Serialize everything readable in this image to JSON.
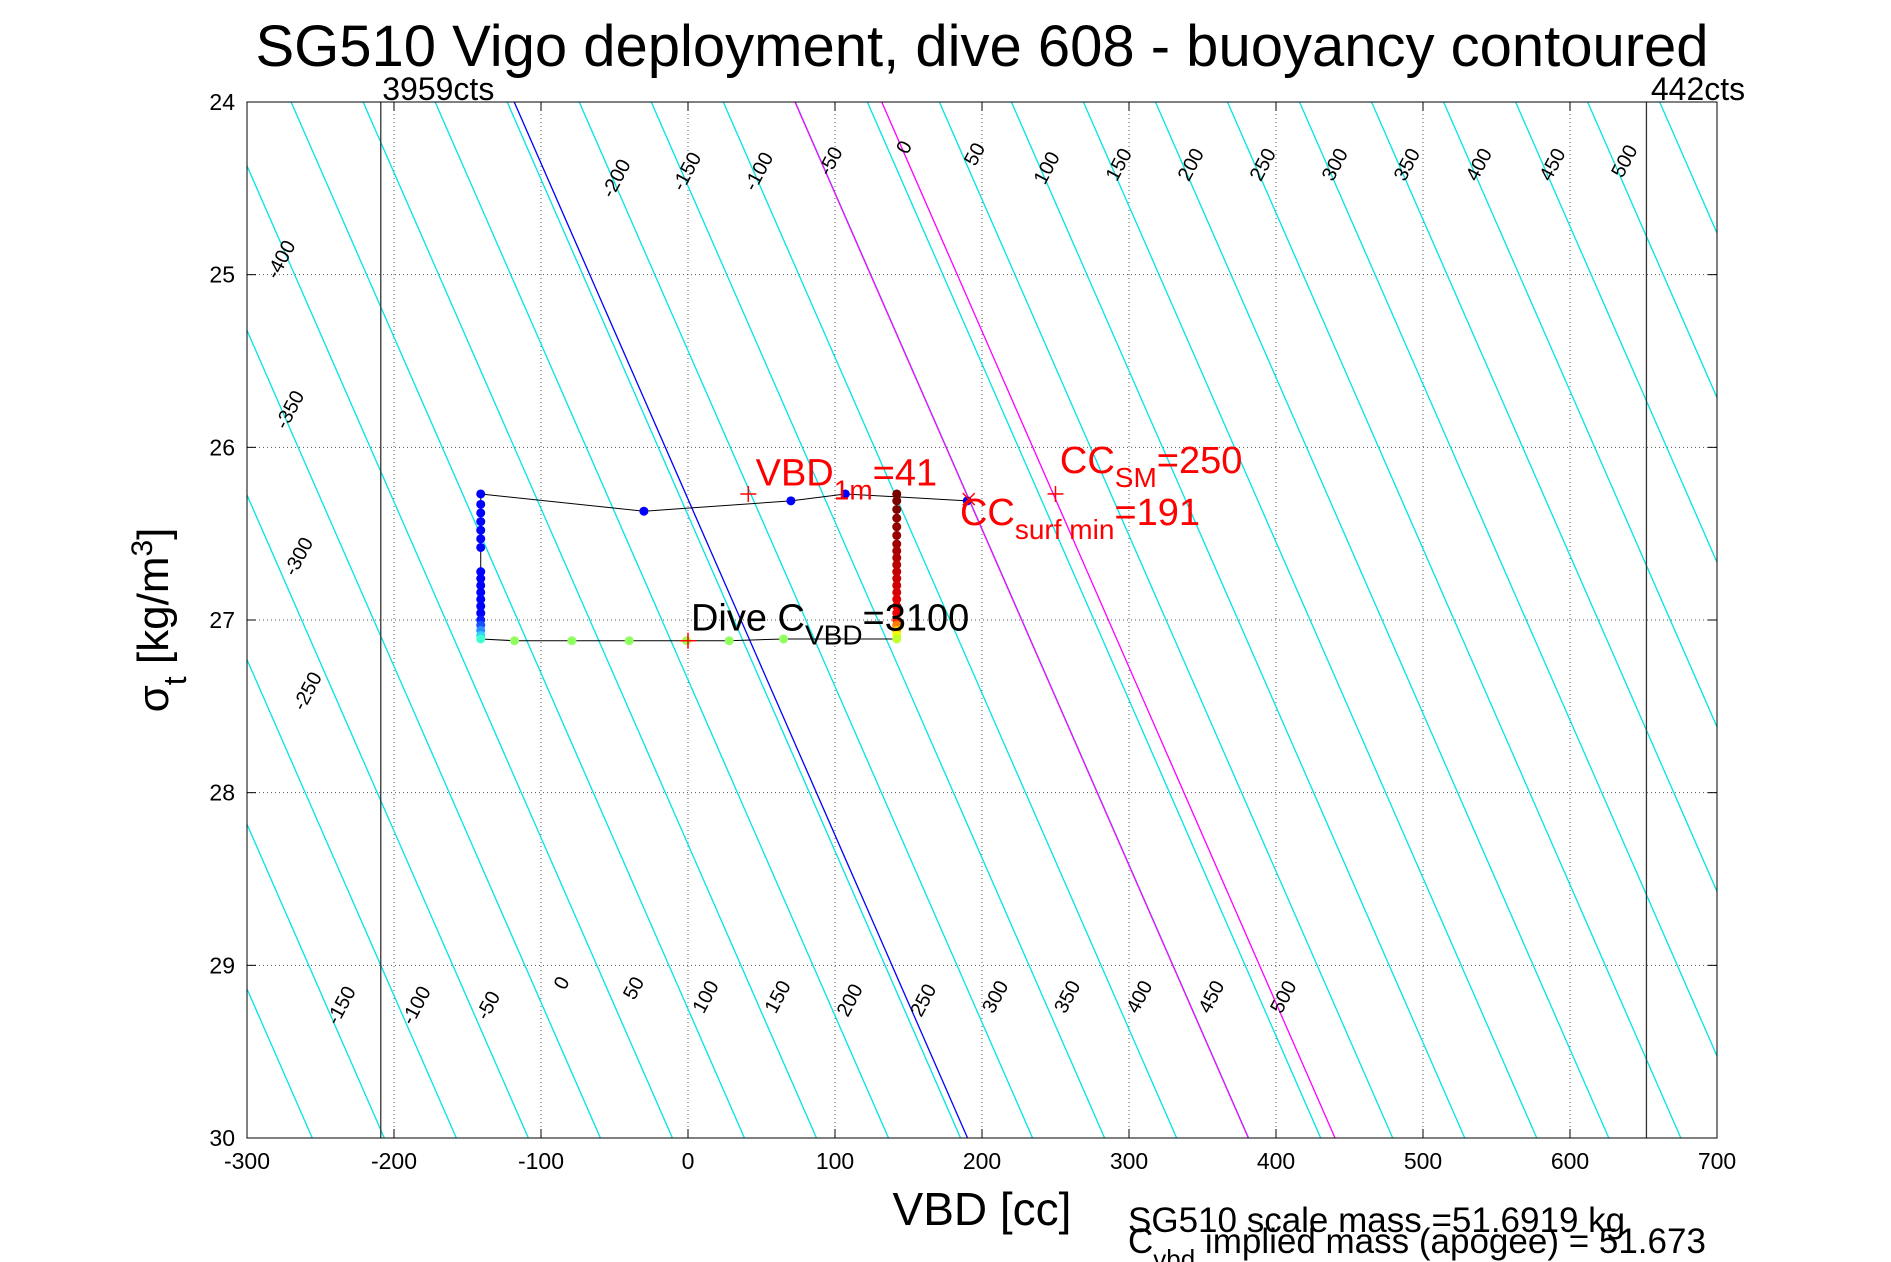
{
  "chart_data": {
    "type": "scatter",
    "title": "SG510 Vigo deployment, dive 608 - buoyancy contoured",
    "xlabel": "VBD [cc]",
    "ylabel": {
      "main": "σ",
      "sub": "t",
      "unit_pre": " [kg/m",
      "unit_sup": "3",
      "unit_post": "]"
    },
    "xlim": [
      -300,
      700
    ],
    "ylim": [
      24,
      30
    ],
    "y_reversed": true,
    "grid": true,
    "x_ticks": [
      -300,
      -200,
      -100,
      0,
      100,
      200,
      300,
      400,
      500,
      600,
      700
    ],
    "y_ticks": [
      24,
      25,
      26,
      27,
      28,
      29,
      30
    ],
    "colors": {
      "contour": "#00e5e5",
      "zero_contour": "#0000ff",
      "magenta_contour": "#ff00ff",
      "track": "#000000",
      "red_marker": "#ff0000"
    },
    "contours": {
      "slope": 51.4,
      "top_levels": [
        -400,
        -350,
        -300,
        -250,
        -200,
        -150,
        -100,
        -50,
        0,
        50,
        100,
        150,
        200,
        250,
        300,
        350,
        400,
        450,
        500
      ],
      "bottom_levels": [
        -150,
        -100,
        -50,
        0,
        50,
        100,
        150,
        200,
        250,
        300,
        350,
        400,
        450,
        500
      ],
      "magenta_levels": [
        191,
        250
      ],
      "labels": [
        {
          "t": "-400",
          "x": -273,
          "y": 24.93
        },
        {
          "t": "-350",
          "x": -267,
          "y": 25.8
        },
        {
          "t": "-300",
          "x": -261,
          "y": 26.65
        },
        {
          "t": "-250",
          "x": -255,
          "y": 27.43
        },
        {
          "t": "-200",
          "x": -45,
          "y": 24.46
        },
        {
          "t": "-150",
          "x": 3,
          "y": 24.42
        },
        {
          "t": "-100",
          "x": 52,
          "y": 24.42
        },
        {
          "t": "-50",
          "x": 101,
          "y": 24.36
        },
        {
          "t": "0",
          "x": 151,
          "y": 24.28
        },
        {
          "t": "50",
          "x": 199,
          "y": 24.32
        },
        {
          "t": "100",
          "x": 248,
          "y": 24.4
        },
        {
          "t": "150",
          "x": 297,
          "y": 24.38
        },
        {
          "t": "200",
          "x": 346,
          "y": 24.38
        },
        {
          "t": "250",
          "x": 395,
          "y": 24.38
        },
        {
          "t": "300",
          "x": 444,
          "y": 24.38
        },
        {
          "t": "350",
          "x": 493,
          "y": 24.38
        },
        {
          "t": "400",
          "x": 542,
          "y": 24.38
        },
        {
          "t": "450",
          "x": 592,
          "y": 24.38
        },
        {
          "t": "500",
          "x": 641,
          "y": 24.36
        },
        {
          "t": "-150",
          "x": -232,
          "y": 29.25
        },
        {
          "t": "-100",
          "x": -181,
          "y": 29.25
        },
        {
          "t": "-50",
          "x": -132,
          "y": 29.25
        },
        {
          "t": "0",
          "x": -82,
          "y": 29.12
        },
        {
          "t": "50",
          "x": -33,
          "y": 29.15
        },
        {
          "t": "100",
          "x": 16,
          "y": 29.2
        },
        {
          "t": "150",
          "x": 65,
          "y": 29.2
        },
        {
          "t": "200",
          "x": 114,
          "y": 29.22
        },
        {
          "t": "250",
          "x": 164,
          "y": 29.22
        },
        {
          "t": "300",
          "x": 213,
          "y": 29.2
        },
        {
          "t": "350",
          "x": 262,
          "y": 29.2
        },
        {
          "t": "400",
          "x": 311,
          "y": 29.2
        },
        {
          "t": "450",
          "x": 360,
          "y": 29.2
        },
        {
          "t": "500",
          "x": 409,
          "y": 29.2
        }
      ]
    },
    "vbd_limits": [
      {
        "x": -209,
        "label": "3959cts",
        "label_x": -208
      },
      {
        "x": 652,
        "label": "442cts",
        "label_x": 655
      }
    ],
    "track": {
      "dive": [
        [
          -141,
          26.27
        ],
        [
          -30,
          26.37
        ],
        [
          70,
          26.31
        ],
        [
          107,
          26.27
        ],
        [
          190,
          26.31
        ]
      ],
      "climb": [
        [
          -141,
          27.11
        ],
        [
          -118,
          27.12
        ],
        [
          -79,
          27.12
        ],
        [
          -40,
          27.12
        ],
        [
          -1,
          27.12
        ],
        [
          28,
          27.12
        ],
        [
          65,
          27.11
        ],
        [
          142,
          27.11
        ]
      ]
    },
    "points": [
      {
        "x": -141,
        "y": 26.27,
        "c": "#0000ff"
      },
      {
        "x": -141,
        "y": 26.33,
        "c": "#0000ff"
      },
      {
        "x": -141,
        "y": 26.38,
        "c": "#0000ff"
      },
      {
        "x": -141,
        "y": 26.43,
        "c": "#0000ff"
      },
      {
        "x": -141,
        "y": 26.48,
        "c": "#0000ff"
      },
      {
        "x": -141,
        "y": 26.53,
        "c": "#0000ff"
      },
      {
        "x": -141,
        "y": 26.58,
        "c": "#0000ff"
      },
      {
        "x": -141,
        "y": 26.72,
        "c": "#0000ff"
      },
      {
        "x": -141,
        "y": 26.76,
        "c": "#0000ff"
      },
      {
        "x": -141,
        "y": 26.8,
        "c": "#0000ff"
      },
      {
        "x": -141,
        "y": 26.84,
        "c": "#0000ff"
      },
      {
        "x": -141,
        "y": 26.88,
        "c": "#0000ff"
      },
      {
        "x": -141,
        "y": 26.92,
        "c": "#0000ff"
      },
      {
        "x": -141,
        "y": 26.96,
        "c": "#0000ff"
      },
      {
        "x": -141,
        "y": 27.0,
        "c": "#0a1aff"
      },
      {
        "x": -141,
        "y": 27.03,
        "c": "#1a50ff"
      },
      {
        "x": -141,
        "y": 27.06,
        "c": "#2a90ff"
      },
      {
        "x": -141,
        "y": 27.09,
        "c": "#30d0ff"
      },
      {
        "x": -141,
        "y": 27.11,
        "c": "#40ffd0"
      },
      {
        "x": -118,
        "y": 27.12,
        "c": "#90ff60"
      },
      {
        "x": -79,
        "y": 27.12,
        "c": "#90ff60"
      },
      {
        "x": -40,
        "y": 27.12,
        "c": "#90ff60"
      },
      {
        "x": -1,
        "y": 27.12,
        "c": "#a0ff50"
      },
      {
        "x": 28,
        "y": 27.12,
        "c": "#90ff60"
      },
      {
        "x": 65,
        "y": 27.11,
        "c": "#90ff60"
      },
      {
        "x": -30,
        "y": 26.37,
        "c": "#0000ff"
      },
      {
        "x": 70,
        "y": 26.31,
        "c": "#0000ff"
      },
      {
        "x": 107,
        "y": 26.27,
        "c": "#0000ff"
      },
      {
        "x": 190,
        "y": 26.31,
        "c": "#0000ff"
      },
      {
        "x": 142,
        "y": 26.27,
        "c": "#7a0000"
      },
      {
        "x": 142,
        "y": 26.31,
        "c": "#7a0000"
      },
      {
        "x": 142,
        "y": 26.36,
        "c": "#800000"
      },
      {
        "x": 142,
        "y": 26.41,
        "c": "#8a0000"
      },
      {
        "x": 142,
        "y": 26.46,
        "c": "#900000"
      },
      {
        "x": 142,
        "y": 26.51,
        "c": "#990000"
      },
      {
        "x": 142,
        "y": 26.56,
        "c": "#a00000"
      },
      {
        "x": 142,
        "y": 26.6,
        "c": "#a80000"
      },
      {
        "x": 142,
        "y": 26.64,
        "c": "#b00000"
      },
      {
        "x": 142,
        "y": 26.68,
        "c": "#b80000"
      },
      {
        "x": 142,
        "y": 26.72,
        "c": "#c00000"
      },
      {
        "x": 142,
        "y": 26.76,
        "c": "#c80000"
      },
      {
        "x": 142,
        "y": 26.8,
        "c": "#d00000"
      },
      {
        "x": 142,
        "y": 26.84,
        "c": "#d80000"
      },
      {
        "x": 142,
        "y": 26.88,
        "c": "#e00000"
      },
      {
        "x": 142,
        "y": 26.92,
        "c": "#e80000"
      },
      {
        "x": 142,
        "y": 26.96,
        "c": "#f00000"
      },
      {
        "x": 142,
        "y": 27.0,
        "c": "#ff2000"
      },
      {
        "x": 142,
        "y": 27.03,
        "c": "#ff8000"
      },
      {
        "x": 142,
        "y": 27.06,
        "c": "#ffc000"
      },
      {
        "x": 142,
        "y": 27.09,
        "c": "#f0ff00"
      },
      {
        "x": 142,
        "y": 27.11,
        "c": "#c0ff30"
      }
    ],
    "markers": [
      {
        "type": "plus",
        "x": 41,
        "y": 26.27,
        "c": "#ff0000"
      },
      {
        "type": "plus",
        "x": 250,
        "y": 26.27,
        "c": "#ff0000"
      },
      {
        "type": "x",
        "x": 191,
        "y": 26.3,
        "c": "#ff0000"
      },
      {
        "type": "plus",
        "x": 0,
        "y": 27.12,
        "c": "#ff0000"
      }
    ],
    "annotations": [
      {
        "name": "vbd-1m-annotation",
        "x": 46,
        "y": 26.22,
        "color": "#ff0000",
        "parts": [
          {
            "t": "VBD"
          },
          {
            "t": "1m",
            "sub": true
          },
          {
            "t": "=41"
          }
        ]
      },
      {
        "name": "cc-sm-annotation",
        "x": 253,
        "y": 26.15,
        "color": "#ff0000",
        "parts": [
          {
            "t": "CC"
          },
          {
            "t": "SM",
            "sub": true
          },
          {
            "t": "=250"
          }
        ]
      },
      {
        "name": "cc-surf-min-annotation",
        "x": 185,
        "y": 26.45,
        "color": "#ff0000",
        "parts": [
          {
            "t": "CC"
          },
          {
            "t": "surf min",
            "sub": true
          },
          {
            "t": "=191"
          }
        ]
      },
      {
        "name": "dive-cvbd-annotation",
        "x": 2,
        "y": 27.06,
        "color": "#000000",
        "parts": [
          {
            "t": "Dive C"
          },
          {
            "t": "VBD",
            "sub": true
          },
          {
            "t": "=3100"
          }
        ]
      }
    ],
    "footer": {
      "scale_mass": "SG510 scale mass =51.6919 kg",
      "implied_mass": {
        "pre": "C",
        "sub": "vbd",
        "post": " implied mass (apogee) = 51.673"
      }
    }
  }
}
